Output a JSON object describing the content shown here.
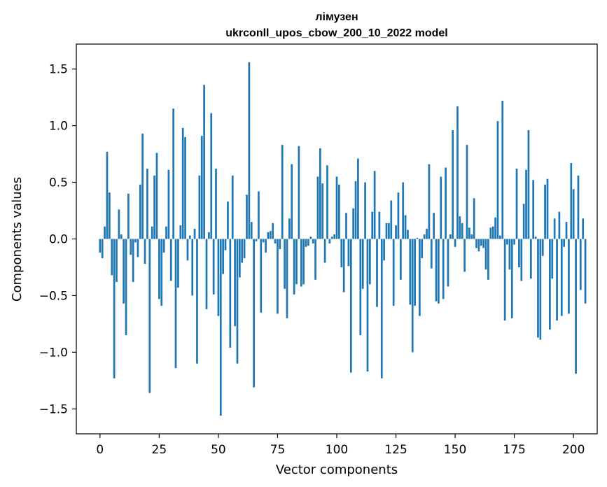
{
  "chart_data": {
    "type": "bar",
    "title": "лімузен",
    "subtitle": "ukrconll_upos_cbow_200_10_2022 model",
    "xlabel": "Vector components",
    "ylabel": "Components values",
    "xlim": [
      -10,
      210
    ],
    "ylim": [
      -1.72,
      1.72
    ],
    "xticks": [
      0,
      25,
      50,
      75,
      100,
      125,
      150,
      175,
      200
    ],
    "yticks": [
      -1.5,
      -1.0,
      -0.5,
      0.0,
      0.5,
      1.0,
      1.5
    ],
    "ytick_labels": [
      "−1.5",
      "−1.0",
      "−0.5",
      "0.0",
      "0.5",
      "1.0",
      "1.5"
    ],
    "grid": false,
    "bar_color": "#1f77b4",
    "values": [
      -0.12,
      -0.17,
      0.11,
      0.77,
      0.41,
      -0.32,
      -1.23,
      -0.38,
      0.26,
      0.04,
      -0.57,
      -0.85,
      0.4,
      -0.14,
      -0.38,
      -0.03,
      -0.16,
      0.48,
      0.93,
      -0.22,
      0.62,
      -1.36,
      0.11,
      0.56,
      0.76,
      -0.53,
      -0.59,
      -0.12,
      0.11,
      0.61,
      -0.37,
      1.15,
      -1.14,
      -0.43,
      0.12,
      0.98,
      0.9,
      -0.19,
      0.03,
      -0.5,
      0.09,
      -1.1,
      0.56,
      0.91,
      1.36,
      -0.62,
      0.06,
      1.11,
      -0.49,
      0.62,
      -0.68,
      -1.56,
      -0.31,
      -0.1,
      0.33,
      -0.96,
      0.56,
      -0.77,
      -1.1,
      -0.34,
      -0.21,
      -0.17,
      0.39,
      1.56,
      0.15,
      -1.31,
      -0.02,
      0.42,
      -0.65,
      -0.03,
      -0.12,
      0.06,
      0.07,
      0.14,
      -0.04,
      -0.66,
      -0.09,
      0.83,
      -0.44,
      -0.7,
      0.18,
      0.66,
      -0.49,
      -0.4,
      0.82,
      -0.42,
      -0.4,
      -0.07,
      -0.06,
      0.02,
      -0.04,
      -0.36,
      0.55,
      0.8,
      0.49,
      -0.21,
      0.65,
      -0.04,
      0.02,
      0.04,
      0.55,
      0.48,
      -0.25,
      -0.47,
      0.23,
      -0.24,
      -1.18,
      0.27,
      0.51,
      0.71,
      -0.85,
      -0.44,
      0.5,
      -1.17,
      -0.4,
      0.24,
      0.6,
      -0.6,
      0.24,
      -1.23,
      -0.19,
      0.14,
      0.14,
      0.34,
      -0.59,
      0.12,
      0.41,
      -0.36,
      0.5,
      0.21,
      0.08,
      -0.58,
      -1.0,
      -0.59,
      0.01,
      -0.68,
      -0.17,
      0.04,
      0.09,
      0.66,
      -0.26,
      0.23,
      -0.55,
      -0.57,
      0.55,
      -0.53,
      0.63,
      -0.42,
      0.04,
      0.96,
      -0.07,
      1.17,
      0.2,
      0.14,
      -0.29,
      0.83,
      0.1,
      0.04,
      0.36,
      -0.08,
      -0.11,
      -0.06,
      -0.08,
      -0.27,
      -0.36,
      0.1,
      0.11,
      0.19,
      1.04,
      0.03,
      1.22,
      -0.72,
      -0.05,
      -0.27,
      -0.7,
      -0.05,
      0.62,
      -0.25,
      -0.37,
      0.31,
      0.61,
      0.96,
      -0.35,
      0.52,
      0.02,
      -0.87,
      -0.89,
      -0.15,
      0.48,
      0.53,
      -0.8,
      -0.35,
      0.18,
      -0.72,
      0.24,
      -0.68,
      -0.07,
      0.15,
      -0.66,
      0.67,
      0.44,
      -1.19,
      0.56,
      -0.45,
      0.18,
      -0.57
    ]
  }
}
